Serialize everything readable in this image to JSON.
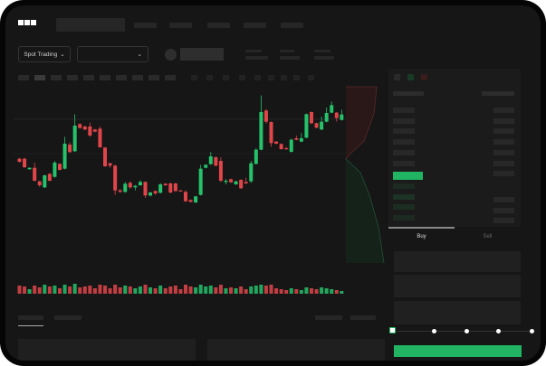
{
  "brand": {
    "logo_text": "OKX"
  },
  "market": {
    "mode_label": "Spot Trading",
    "mode_icon": "chevron-down-icon",
    "pair_icon": "chevron-down-icon"
  },
  "trade": {
    "buy_label": "Buy",
    "sell_label": "Sell",
    "submit_color": "#21b462",
    "slider_percent": 0,
    "slider_stops": 5
  },
  "colors": {
    "up": "#25c26b",
    "down": "#e0454a",
    "accent": "#21b462",
    "background": "#161616"
  },
  "chart_data": {
    "type": "candlestick",
    "candles_ohlc": [
      [
        185,
        175,
        188,
        172
      ],
      [
        185,
        157,
        188,
        154
      ],
      [
        150,
        155,
        156,
        149
      ],
      [
        155,
        112,
        172,
        110
      ],
      [
        110,
        97,
        112,
        92
      ],
      [
        90,
        130,
        132,
        88
      ],
      [
        135,
        112,
        137,
        110
      ],
      [
        125,
        172,
        178,
        122
      ],
      [
        168,
        148,
        170,
        146
      ],
      [
        152,
        235,
        258,
        150
      ],
      [
        232,
        207,
        240,
        205
      ],
      [
        210,
        295,
        333,
        208
      ],
      [
        300,
        287,
        303,
        285
      ],
      [
        292,
        282,
        295,
        280
      ],
      [
        292,
        262,
        305,
        258
      ],
      [
        282,
        275,
        284,
        273
      ],
      [
        285,
        223,
        292,
        221
      ],
      [
        222,
        160,
        224,
        158
      ],
      [
        170,
        162,
        172,
        155
      ],
      [
        162,
        80,
        165,
        65
      ],
      [
        80,
        75,
        85,
        72
      ],
      [
        75,
        102,
        108,
        72
      ],
      [
        105,
        90,
        110,
        85
      ],
      [
        90,
        95,
        98,
        80
      ],
      [
        97,
        108,
        113,
        95
      ],
      [
        108,
        63,
        110,
        55
      ],
      [
        63,
        73,
        75,
        60
      ],
      [
        78,
        70,
        80,
        65
      ],
      [
        72,
        100,
        104,
        70
      ],
      [
        102,
        97,
        104,
        95
      ],
      [
        103,
        73,
        106,
        70
      ],
      [
        103,
        78,
        105,
        75
      ],
      [
        80,
        78,
        81,
        77
      ],
      [
        75,
        44,
        80,
        42
      ],
      [
        48,
        42,
        50,
        40
      ],
      [
        40,
        60,
        62,
        38
      ],
      [
        65,
        152,
        165,
        63
      ],
      [
        155,
        165,
        167,
        153
      ],
      [
        167,
        193,
        207,
        165
      ],
      [
        190,
        162,
        193,
        160
      ],
      [
        178,
        112,
        190,
        108
      ],
      [
        108,
        112,
        118,
        100
      ],
      [
        117,
        107,
        119,
        105
      ],
      [
        100,
        110,
        112,
        98
      ],
      [
        115,
        87,
        117,
        85
      ],
      [
        108,
        103,
        122,
        101
      ],
      [
        110,
        170,
        178,
        105
      ],
      [
        168,
        215,
        220,
        166
      ],
      [
        215,
        340,
        395,
        213
      ],
      [
        345,
        308,
        350,
        302
      ],
      [
        307,
        237,
        309,
        225
      ],
      [
        242,
        235,
        244,
        233
      ],
      [
        234,
        217,
        236,
        215
      ],
      [
        220,
        217,
        225,
        215
      ],
      [
        208,
        248,
        252,
        206
      ],
      [
        253,
        248,
        262,
        246
      ],
      [
        242,
        253,
        270,
        240
      ],
      [
        255,
        333,
        335,
        253
      ],
      [
        340,
        303,
        342,
        300
      ],
      [
        303,
        288,
        305,
        286
      ],
      [
        282,
        308,
        325,
        280
      ],
      [
        308,
        337,
        355,
        306
      ],
      [
        338,
        363,
        375,
        336
      ],
      [
        338,
        320,
        340,
        308
      ],
      [
        314,
        332,
        348,
        312
      ]
    ],
    "volumes": [
      9,
      8,
      5,
      9,
      7,
      10,
      8,
      9,
      6,
      10,
      8,
      11,
      7,
      8,
      9,
      6,
      10,
      9,
      6,
      10,
      7,
      9,
      8,
      6,
      8,
      10,
      7,
      6,
      9,
      6,
      8,
      9,
      5,
      10,
      8,
      7,
      10,
      8,
      9,
      7,
      10,
      6,
      7,
      6,
      8,
      5,
      8,
      9,
      10,
      9,
      10,
      6,
      5,
      4,
      6,
      5,
      4,
      7,
      6,
      5,
      7,
      6,
      5,
      4,
      3
    ],
    "grid": false
  }
}
